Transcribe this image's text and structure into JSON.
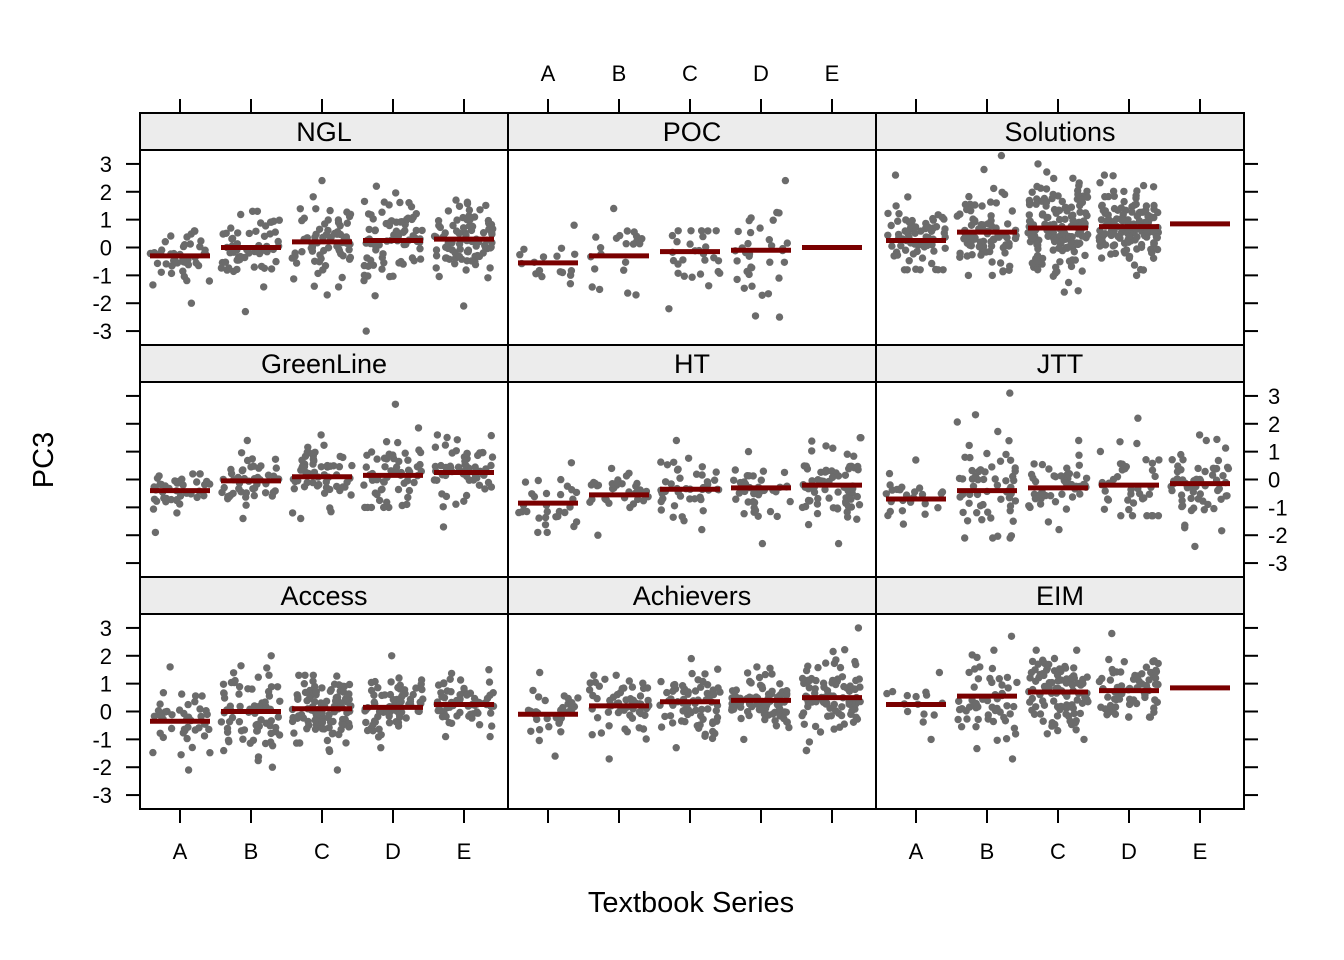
{
  "chart_data": {
    "type": "scatter",
    "xlabel": "Textbook Series",
    "ylabel": "PC3",
    "ylim": [
      -3.5,
      3.5
    ],
    "y_ticks": [
      -3,
      -2,
      -1,
      0,
      1,
      2,
      3
    ],
    "categories": [
      "A",
      "B",
      "C",
      "D",
      "E"
    ],
    "layout": "3x3 lattice, bottom row first",
    "colors": {
      "points": "#6b6b6b",
      "mean_line": "#7a0000",
      "strip": "#ececec"
    },
    "panels": [
      {
        "name": "NGL",
        "mean": {
          "A": -0.3,
          "B": 0.0,
          "C": 0.2,
          "D": 0.25,
          "E": 0.3
        },
        "range": {
          "A": [
            -2.0,
            0.6
          ],
          "B": [
            -2.3,
            1.3
          ],
          "C": [
            -1.7,
            2.4
          ],
          "D": [
            -3.0,
            2.2
          ],
          "E": [
            -2.1,
            1.7
          ]
        },
        "n": {
          "A": 45,
          "B": 60,
          "C": 70,
          "D": 80,
          "E": 90
        }
      },
      {
        "name": "POC",
        "mean": {
          "A": -0.55,
          "B": -0.3,
          "C": -0.15,
          "D": -0.1,
          "E": 0.0
        },
        "range": {
          "A": [
            -1.3,
            0.8
          ],
          "B": [
            -1.7,
            1.4
          ],
          "C": [
            -2.2,
            0.6
          ],
          "D": [
            -2.5,
            2.4
          ],
          "E": [
            0.0,
            0.0
          ]
        },
        "n": {
          "A": 18,
          "B": 22,
          "C": 28,
          "D": 35,
          "E": 0
        }
      },
      {
        "name": "Solutions",
        "mean": {
          "A": 0.25,
          "B": 0.55,
          "C": 0.7,
          "D": 0.75,
          "E": 0.85
        },
        "range": {
          "A": [
            -0.8,
            2.6
          ],
          "B": [
            -1.0,
            3.3
          ],
          "C": [
            -1.6,
            3.0
          ],
          "D": [
            -1.0,
            2.6
          ],
          "E": [
            0.85,
            0.85
          ]
        },
        "n": {
          "A": 70,
          "B": 90,
          "C": 150,
          "D": 140,
          "E": 0
        }
      },
      {
        "name": "GreenLine",
        "mean": {
          "A": -0.4,
          "B": -0.05,
          "C": 0.1,
          "D": 0.15,
          "E": 0.25
        },
        "range": {
          "A": [
            -1.9,
            0.2
          ],
          "B": [
            -1.4,
            1.4
          ],
          "C": [
            -1.4,
            1.6
          ],
          "D": [
            -1.0,
            2.7
          ],
          "E": [
            -1.7,
            1.6
          ]
        },
        "n": {
          "A": 40,
          "B": 50,
          "C": 60,
          "D": 60,
          "E": 60
        }
      },
      {
        "name": "HT",
        "mean": {
          "A": -0.85,
          "B": -0.55,
          "C": -0.35,
          "D": -0.3,
          "E": -0.2
        },
        "range": {
          "A": [
            -1.9,
            0.6
          ],
          "B": [
            -2.0,
            0.4
          ],
          "C": [
            -1.8,
            1.4
          ],
          "D": [
            -2.3,
            1.0
          ],
          "E": [
            -2.3,
            1.5
          ]
        },
        "n": {
          "A": 30,
          "B": 35,
          "C": 45,
          "D": 45,
          "E": 70
        }
      },
      {
        "name": "JTT",
        "mean": {
          "A": -0.7,
          "B": -0.4,
          "C": -0.3,
          "D": -0.2,
          "E": -0.15
        },
        "range": {
          "A": [
            -1.6,
            0.7
          ],
          "B": [
            -2.1,
            3.1
          ],
          "C": [
            -1.8,
            1.4
          ],
          "D": [
            -1.3,
            2.2
          ],
          "E": [
            -2.4,
            1.6
          ]
        },
        "n": {
          "A": 25,
          "B": 60,
          "C": 45,
          "D": 40,
          "E": 60
        }
      },
      {
        "name": "Access",
        "mean": {
          "A": -0.35,
          "B": 0.0,
          "C": 0.1,
          "D": 0.15,
          "E": 0.25
        },
        "range": {
          "A": [
            -2.1,
            1.6
          ],
          "B": [
            -2.0,
            2.0
          ],
          "C": [
            -2.1,
            1.3
          ],
          "D": [
            -1.3,
            2.0
          ],
          "E": [
            -0.9,
            1.5
          ]
        },
        "n": {
          "A": 45,
          "B": 75,
          "C": 110,
          "D": 75,
          "E": 65
        }
      },
      {
        "name": "Achievers",
        "mean": {
          "A": -0.1,
          "B": 0.2,
          "C": 0.35,
          "D": 0.4,
          "E": 0.5
        },
        "range": {
          "A": [
            -1.6,
            1.4
          ],
          "B": [
            -1.7,
            1.3
          ],
          "C": [
            -1.3,
            1.9
          ],
          "D": [
            -1.0,
            1.6
          ],
          "E": [
            -1.4,
            3.0
          ]
        },
        "n": {
          "A": 35,
          "B": 60,
          "C": 75,
          "D": 85,
          "E": 90
        }
      },
      {
        "name": "EIM",
        "mean": {
          "A": 0.25,
          "B": 0.55,
          "C": 0.7,
          "D": 0.75,
          "E": 0.85
        },
        "range": {
          "A": [
            -1.0,
            1.4
          ],
          "B": [
            -1.7,
            2.7
          ],
          "C": [
            -1.0,
            2.2
          ],
          "D": [
            -0.2,
            2.8
          ],
          "E": [
            0.85,
            0.85
          ]
        },
        "n": {
          "A": 15,
          "B": 60,
          "C": 100,
          "D": 70,
          "E": 0
        }
      }
    ]
  }
}
